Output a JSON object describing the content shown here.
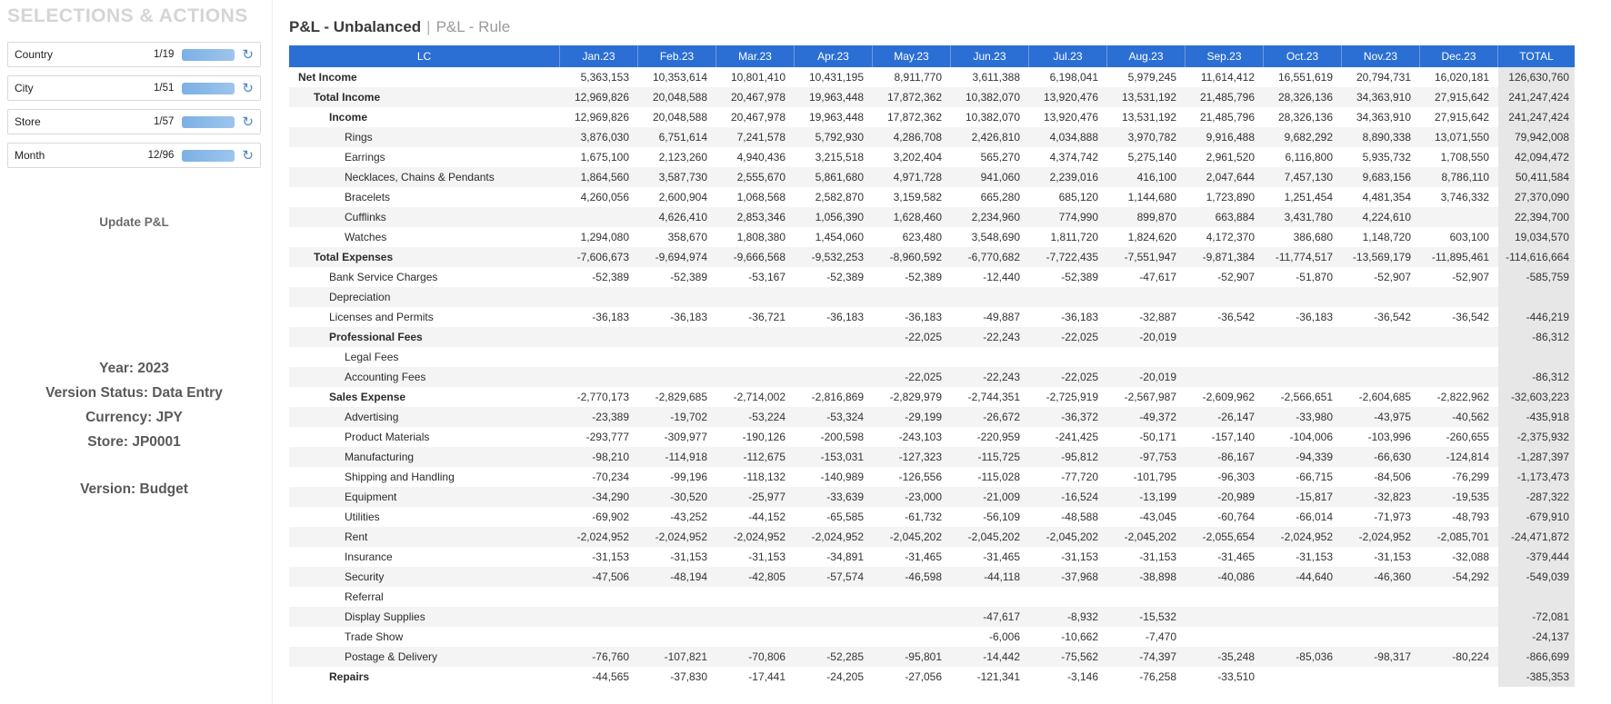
{
  "colors": {
    "header_blue": "#2b6fd4",
    "total_column_bg": "#e7e7e7",
    "bar_blue": "#85b4e6"
  },
  "icons": {
    "refresh": "↻"
  },
  "sidebar": {
    "title": "SELECTIONS & ACTIONS",
    "selectors": [
      {
        "label": "Country",
        "count": "1/19"
      },
      {
        "label": "City",
        "count": "1/51"
      },
      {
        "label": "Store",
        "count": "1/57"
      },
      {
        "label": "Month",
        "count": "12/96"
      }
    ],
    "update_button": "Update P&L",
    "info_lines": [
      "Year: 2023",
      "Version Status: Data Entry",
      "Currency: JPY",
      "Store: JP0001"
    ],
    "version_line": "Version: Budget"
  },
  "main": {
    "title_primary": "P&L - Unbalanced",
    "title_separator": "|",
    "title_secondary": "P&L - Rule"
  },
  "table": {
    "columns": [
      "LC",
      "Jan.23",
      "Feb.23",
      "Mar.23",
      "Apr.23",
      "May.23",
      "Jun.23",
      "Jul.23",
      "Aug.23",
      "Sep.23",
      "Oct.23",
      "Nov.23",
      "Dec.23",
      "TOTAL"
    ],
    "rows": [
      {
        "label": "Net Income",
        "indent": 0,
        "bold": true,
        "values": [
          "5,363,153",
          "10,353,614",
          "10,801,410",
          "10,431,195",
          "8,911,770",
          "3,611,388",
          "6,198,041",
          "5,979,245",
          "11,614,412",
          "16,551,619",
          "20,794,731",
          "16,020,181",
          "126,630,760"
        ]
      },
      {
        "label": "Total Income",
        "indent": 1,
        "bold": true,
        "values": [
          "12,969,826",
          "20,048,588",
          "20,467,978",
          "19,963,448",
          "17,872,362",
          "10,382,070",
          "13,920,476",
          "13,531,192",
          "21,485,796",
          "28,326,136",
          "34,363,910",
          "27,915,642",
          "241,247,424"
        ]
      },
      {
        "label": "Income",
        "indent": 2,
        "bold": true,
        "values": [
          "12,969,826",
          "20,048,588",
          "20,467,978",
          "19,963,448",
          "17,872,362",
          "10,382,070",
          "13,920,476",
          "13,531,192",
          "21,485,796",
          "28,326,136",
          "34,363,910",
          "27,915,642",
          "241,247,424"
        ]
      },
      {
        "label": "Rings",
        "indent": 3,
        "bold": false,
        "values": [
          "3,876,030",
          "6,751,614",
          "7,241,578",
          "5,792,930",
          "4,286,708",
          "2,426,810",
          "4,034,888",
          "3,970,782",
          "9,916,488",
          "9,682,292",
          "8,890,338",
          "13,071,550",
          "79,942,008"
        ]
      },
      {
        "label": "Earrings",
        "indent": 3,
        "bold": false,
        "values": [
          "1,675,100",
          "2,123,260",
          "4,940,436",
          "3,215,518",
          "3,202,404",
          "565,270",
          "4,374,742",
          "5,275,140",
          "2,961,520",
          "6,116,800",
          "5,935,732",
          "1,708,550",
          "42,094,472"
        ]
      },
      {
        "label": "Necklaces, Chains & Pendants",
        "indent": 3,
        "bold": false,
        "values": [
          "1,864,560",
          "3,587,730",
          "2,555,670",
          "5,861,680",
          "4,971,728",
          "941,060",
          "2,239,016",
          "416,100",
          "2,047,644",
          "7,457,130",
          "9,683,156",
          "8,786,110",
          "50,411,584"
        ]
      },
      {
        "label": "Bracelets",
        "indent": 3,
        "bold": false,
        "values": [
          "4,260,056",
          "2,600,904",
          "1,068,568",
          "2,582,870",
          "3,159,582",
          "665,280",
          "685,120",
          "1,144,680",
          "1,723,890",
          "1,251,454",
          "4,481,354",
          "3,746,332",
          "27,370,090"
        ]
      },
      {
        "label": "Cufflinks",
        "indent": 3,
        "bold": false,
        "values": [
          "",
          "4,626,410",
          "2,853,346",
          "1,056,390",
          "1,628,460",
          "2,234,960",
          "774,990",
          "899,870",
          "663,884",
          "3,431,780",
          "4,224,610",
          "",
          "22,394,700"
        ]
      },
      {
        "label": "Watches",
        "indent": 3,
        "bold": false,
        "values": [
          "1,294,080",
          "358,670",
          "1,808,380",
          "1,454,060",
          "623,480",
          "3,548,690",
          "1,811,720",
          "1,824,620",
          "4,172,370",
          "386,680",
          "1,148,720",
          "603,100",
          "19,034,570"
        ]
      },
      {
        "label": "Total Expenses",
        "indent": 1,
        "bold": true,
        "values": [
          "-7,606,673",
          "-9,694,974",
          "-9,666,568",
          "-9,532,253",
          "-8,960,592",
          "-6,770,682",
          "-7,722,435",
          "-7,551,947",
          "-9,871,384",
          "-11,774,517",
          "-13,569,179",
          "-11,895,461",
          "-114,616,664"
        ]
      },
      {
        "label": "Bank Service Charges",
        "indent": 2,
        "bold": false,
        "values": [
          "-52,389",
          "-52,389",
          "-53,167",
          "-52,389",
          "-52,389",
          "-12,440",
          "-52,389",
          "-47,617",
          "-52,907",
          "-51,870",
          "-52,907",
          "-52,907",
          "-585,759"
        ]
      },
      {
        "label": "Depreciation",
        "indent": 2,
        "bold": false,
        "values": [
          "",
          "",
          "",
          "",
          "",
          "",
          "",
          "",
          "",
          "",
          "",
          "",
          ""
        ]
      },
      {
        "label": "Licenses and Permits",
        "indent": 2,
        "bold": false,
        "values": [
          "-36,183",
          "-36,183",
          "-36,721",
          "-36,183",
          "-36,183",
          "-49,887",
          "-36,183",
          "-32,887",
          "-36,542",
          "-36,183",
          "-36,542",
          "-36,542",
          "-446,219"
        ]
      },
      {
        "label": "Professional Fees",
        "indent": 2,
        "bold": true,
        "values": [
          "",
          "",
          "",
          "",
          "-22,025",
          "-22,243",
          "-22,025",
          "-20,019",
          "",
          "",
          "",
          "",
          "-86,312"
        ]
      },
      {
        "label": "Legal Fees",
        "indent": 3,
        "bold": false,
        "values": [
          "",
          "",
          "",
          "",
          "",
          "",
          "",
          "",
          "",
          "",
          "",
          "",
          ""
        ]
      },
      {
        "label": "Accounting Fees",
        "indent": 3,
        "bold": false,
        "values": [
          "",
          "",
          "",
          "",
          "-22,025",
          "-22,243",
          "-22,025",
          "-20,019",
          "",
          "",
          "",
          "",
          "-86,312"
        ]
      },
      {
        "label": "Sales Expense",
        "indent": 2,
        "bold": true,
        "values": [
          "-2,770,173",
          "-2,829,685",
          "-2,714,002",
          "-2,816,869",
          "-2,829,979",
          "-2,744,351",
          "-2,725,919",
          "-2,567,987",
          "-2,609,962",
          "-2,566,651",
          "-2,604,685",
          "-2,822,962",
          "-32,603,223"
        ]
      },
      {
        "label": "Advertising",
        "indent": 3,
        "bold": false,
        "values": [
          "-23,389",
          "-19,702",
          "-53,224",
          "-53,324",
          "-29,199",
          "-26,672",
          "-36,372",
          "-49,372",
          "-26,147",
          "-33,980",
          "-43,975",
          "-40,562",
          "-435,918"
        ]
      },
      {
        "label": "Product Materials",
        "indent": 3,
        "bold": false,
        "values": [
          "-293,777",
          "-309,977",
          "-190,126",
          "-200,598",
          "-243,103",
          "-220,959",
          "-241,425",
          "-50,171",
          "-157,140",
          "-104,006",
          "-103,996",
          "-260,655",
          "-2,375,932"
        ]
      },
      {
        "label": "Manufacturing",
        "indent": 3,
        "bold": false,
        "values": [
          "-98,210",
          "-114,918",
          "-112,675",
          "-153,031",
          "-127,323",
          "-115,725",
          "-95,812",
          "-97,753",
          "-86,167",
          "-94,339",
          "-66,630",
          "-124,814",
          "-1,287,397"
        ]
      },
      {
        "label": "Shipping and Handling",
        "indent": 3,
        "bold": false,
        "values": [
          "-70,234",
          "-99,196",
          "-118,132",
          "-140,989",
          "-126,556",
          "-115,028",
          "-77,720",
          "-101,795",
          "-96,303",
          "-66,715",
          "-84,506",
          "-76,299",
          "-1,173,473"
        ]
      },
      {
        "label": "Equipment",
        "indent": 3,
        "bold": false,
        "values": [
          "-34,290",
          "-30,520",
          "-25,977",
          "-33,639",
          "-23,000",
          "-21,009",
          "-16,524",
          "-13,199",
          "-20,989",
          "-15,817",
          "-32,823",
          "-19,535",
          "-287,322"
        ]
      },
      {
        "label": "Utilities",
        "indent": 3,
        "bold": false,
        "values": [
          "-69,902",
          "-43,252",
          "-44,152",
          "-65,585",
          "-61,732",
          "-56,109",
          "-48,588",
          "-43,045",
          "-60,764",
          "-66,014",
          "-71,973",
          "-48,793",
          "-679,910"
        ]
      },
      {
        "label": "Rent",
        "indent": 3,
        "bold": false,
        "values": [
          "-2,024,952",
          "-2,024,952",
          "-2,024,952",
          "-2,024,952",
          "-2,045,202",
          "-2,045,202",
          "-2,045,202",
          "-2,045,202",
          "-2,055,654",
          "-2,024,952",
          "-2,024,952",
          "-2,085,701",
          "-24,471,872"
        ]
      },
      {
        "label": "Insurance",
        "indent": 3,
        "bold": false,
        "values": [
          "-31,153",
          "-31,153",
          "-31,153",
          "-34,891",
          "-31,465",
          "-31,465",
          "-31,153",
          "-31,153",
          "-31,465",
          "-31,153",
          "-31,153",
          "-32,088",
          "-379,444"
        ]
      },
      {
        "label": "Security",
        "indent": 3,
        "bold": false,
        "values": [
          "-47,506",
          "-48,194",
          "-42,805",
          "-57,574",
          "-46,598",
          "-44,118",
          "-37,968",
          "-38,898",
          "-40,086",
          "-44,640",
          "-46,360",
          "-54,292",
          "-549,039"
        ]
      },
      {
        "label": "Referral",
        "indent": 3,
        "bold": false,
        "values": [
          "",
          "",
          "",
          "",
          "",
          "",
          "",
          "",
          "",
          "",
          "",
          "",
          ""
        ]
      },
      {
        "label": "Display Supplies",
        "indent": 3,
        "bold": false,
        "values": [
          "",
          "",
          "",
          "",
          "",
          "-47,617",
          "-8,932",
          "-15,532",
          "",
          "",
          "",
          "",
          "-72,081"
        ]
      },
      {
        "label": "Trade Show",
        "indent": 3,
        "bold": false,
        "values": [
          "",
          "",
          "",
          "",
          "",
          "-6,006",
          "-10,662",
          "-7,470",
          "",
          "",
          "",
          "",
          "-24,137"
        ]
      },
      {
        "label": "Postage & Delivery",
        "indent": 3,
        "bold": false,
        "values": [
          "-76,760",
          "-107,821",
          "-70,806",
          "-52,285",
          "-95,801",
          "-14,442",
          "-75,562",
          "-74,397",
          "-35,248",
          "-85,036",
          "-98,317",
          "-80,224",
          "-866,699"
        ]
      },
      {
        "label": "Repairs",
        "indent": 2,
        "bold": true,
        "values": [
          "-44,565",
          "-37,830",
          "-17,441",
          "-24,205",
          "-27,056",
          "-121,341",
          "-3,146",
          "-76,258",
          "-33,510",
          "",
          "",
          "",
          "-385,353"
        ]
      }
    ]
  }
}
